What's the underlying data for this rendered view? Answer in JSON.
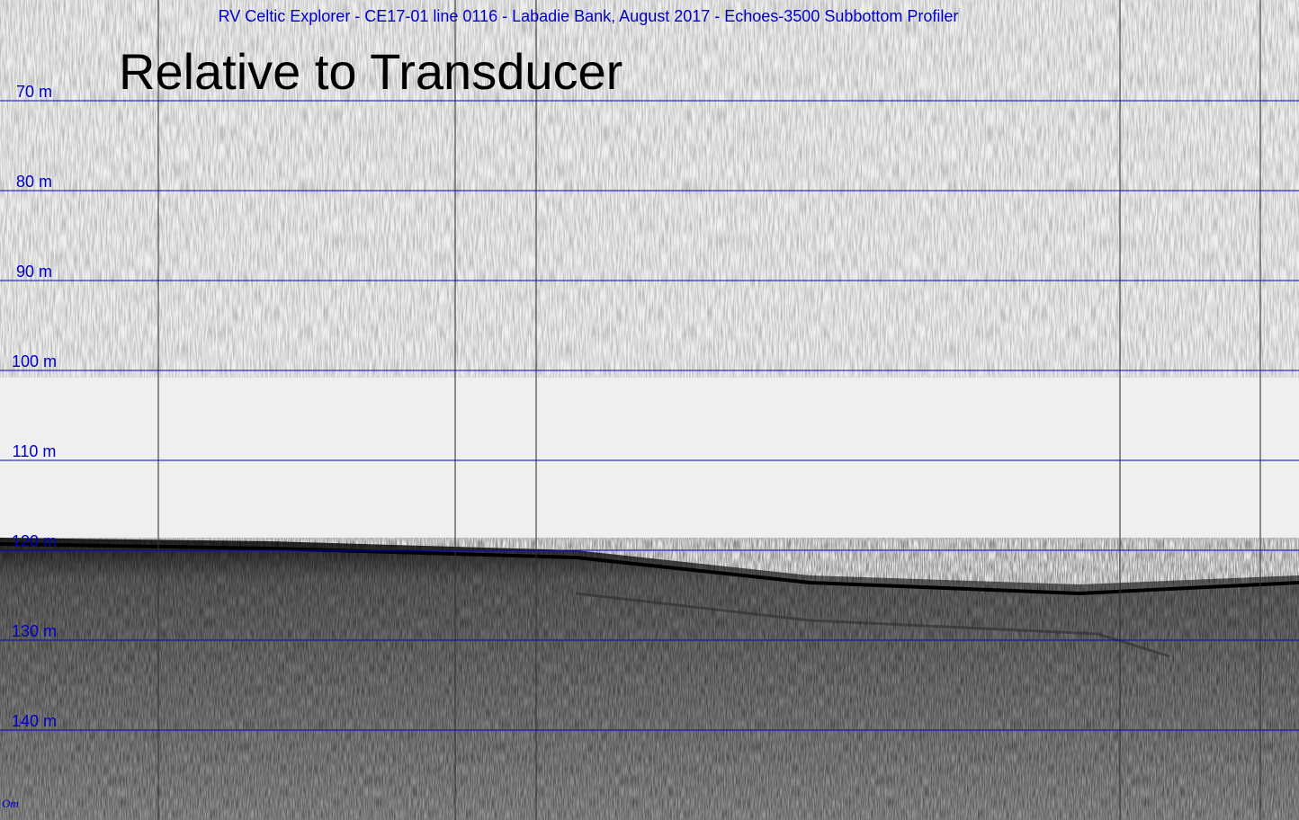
{
  "chart_data": {
    "type": "profile",
    "title": "RV Celtic Explorer - CE17-01 line 0116 - Labadie Bank, August 2017 - Echoes-3500 Subbottom Profiler",
    "subtitle": "Relative to Transducer",
    "footer": "Om",
    "ylim": [
      58.8,
      150
    ],
    "inverted": true,
    "yticks": [
      {
        "value": 70,
        "label": "70 m"
      },
      {
        "value": 80,
        "label": "80 m"
      },
      {
        "value": 90,
        "label": "90 m"
      },
      {
        "value": 100,
        "label": "100 m"
      },
      {
        "value": 110,
        "label": "110 m"
      },
      {
        "value": 120,
        "label": "120 m"
      },
      {
        "value": 130,
        "label": "130 m"
      },
      {
        "value": 140,
        "label": "140 m"
      }
    ],
    "grid": true,
    "grid_color": "#0000cc"
  }
}
